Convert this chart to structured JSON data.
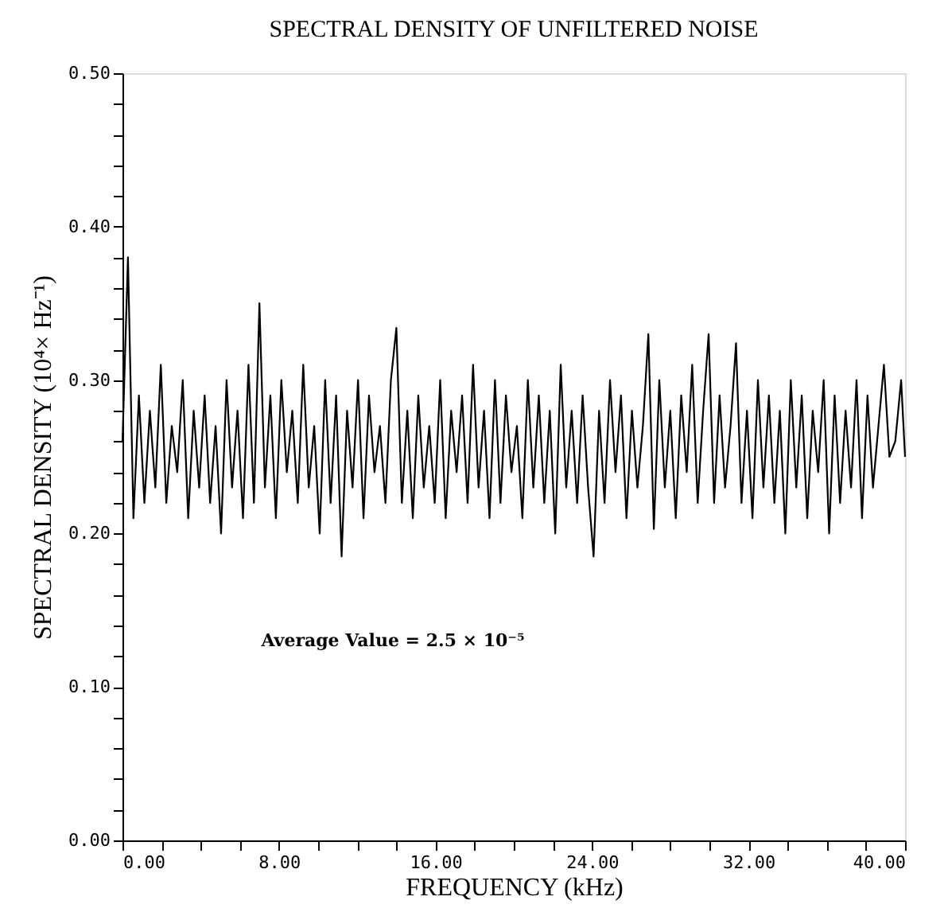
{
  "chart_data": {
    "type": "line",
    "title": "SPECTRAL DENSITY OF UNFILTERED NOISE",
    "xlabel": "FREQUENCY (kHz)",
    "ylabel": "SPECTRAL DENSITY (10⁴× Hz⁻¹)",
    "x": [
      0,
      0.28,
      0.56,
      0.84,
      1.12,
      1.4,
      1.68,
      1.96,
      2.24,
      2.52,
      2.8,
      3.08,
      3.36,
      3.64,
      3.92,
      4.2,
      4.48,
      4.76,
      5.04,
      5.32,
      5.6,
      5.88,
      6.16,
      6.44,
      6.72,
      7,
      7.28,
      7.56,
      7.84,
      8.12,
      8.4,
      8.68,
      8.96,
      9.24,
      9.52,
      9.8,
      10.08,
      10.36,
      10.64,
      10.92,
      11.2,
      11.48,
      11.76,
      12.04,
      12.32,
      12.6,
      12.88,
      13.16,
      13.44,
      13.72,
      14,
      14.28,
      14.56,
      14.84,
      15.12,
      15.4,
      15.68,
      15.96,
      16.24,
      16.52,
      16.8,
      17.08,
      17.36,
      17.64,
      17.92,
      18.2,
      18.48,
      18.76,
      19.04,
      19.32,
      19.6,
      19.88,
      20.16,
      20.44,
      20.72,
      21,
      21.28,
      21.56,
      21.84,
      22.12,
      22.4,
      22.68,
      22.96,
      23.24,
      23.52,
      23.8,
      24.08,
      24.36,
      24.64,
      24.92,
      25.2,
      25.48,
      25.76,
      26.04,
      26.32,
      26.6,
      26.88,
      27.16,
      27.44,
      27.72,
      28,
      28.28,
      28.56,
      28.84,
      29.12,
      29.4,
      29.68,
      29.96,
      30.24,
      30.52,
      30.8,
      31.08,
      31.36,
      31.64,
      31.92,
      32.2,
      32.48,
      32.76,
      33.04,
      33.32,
      33.6,
      33.88,
      34.16,
      34.44,
      34.72,
      35,
      35.28,
      35.56,
      35.84,
      36.12,
      36.4,
      36.68,
      36.96,
      37.24,
      37.52,
      37.8,
      38.08,
      38.36,
      38.64,
      38.92,
      39.2,
      39.5,
      39.8,
      40
    ],
    "series": [
      {
        "color": "#000000",
        "values": [
          0.26,
          0.38,
          0.21,
          0.29,
          0.22,
          0.28,
          0.23,
          0.31,
          0.22,
          0.27,
          0.24,
          0.3,
          0.21,
          0.28,
          0.23,
          0.29,
          0.22,
          0.27,
          0.2,
          0.3,
          0.23,
          0.28,
          0.21,
          0.31,
          0.22,
          0.35,
          0.23,
          0.29,
          0.21,
          0.3,
          0.24,
          0.28,
          0.22,
          0.31,
          0.23,
          0.27,
          0.2,
          0.3,
          0.22,
          0.29,
          0.185,
          0.28,
          0.23,
          0.3,
          0.21,
          0.29,
          0.24,
          0.27,
          0.22,
          0.3,
          0.334,
          0.22,
          0.28,
          0.21,
          0.29,
          0.23,
          0.27,
          0.22,
          0.3,
          0.21,
          0.28,
          0.24,
          0.29,
          0.22,
          0.31,
          0.23,
          0.28,
          0.21,
          0.3,
          0.22,
          0.29,
          0.24,
          0.27,
          0.21,
          0.3,
          0.23,
          0.29,
          0.22,
          0.28,
          0.2,
          0.31,
          0.23,
          0.28,
          0.22,
          0.29,
          0.23,
          0.185,
          0.28,
          0.22,
          0.3,
          0.24,
          0.29,
          0.21,
          0.28,
          0.23,
          0.27,
          0.33,
          0.203,
          0.3,
          0.23,
          0.28,
          0.21,
          0.29,
          0.24,
          0.31,
          0.22,
          0.28,
          0.33,
          0.22,
          0.29,
          0.23,
          0.27,
          0.324,
          0.22,
          0.28,
          0.21,
          0.3,
          0.23,
          0.29,
          0.22,
          0.28,
          0.2,
          0.3,
          0.23,
          0.29,
          0.21,
          0.28,
          0.24,
          0.3,
          0.2,
          0.29,
          0.22,
          0.28,
          0.23,
          0.3,
          0.21,
          0.29,
          0.23,
          0.27,
          0.31,
          0.25,
          0.26,
          0.3,
          0.25
        ]
      }
    ],
    "xlim": [
      0,
      40
    ],
    "ylim": [
      0,
      0.5
    ],
    "xticks": [
      {
        "value": 0,
        "label": "0.00"
      },
      {
        "value": 2,
        "label": null
      },
      {
        "value": 4,
        "label": null
      },
      {
        "value": 6,
        "label": null
      },
      {
        "value": 8,
        "label": "8.00"
      },
      {
        "value": 10,
        "label": null
      },
      {
        "value": 12,
        "label": null
      },
      {
        "value": 14,
        "label": null
      },
      {
        "value": 16,
        "label": "16.00"
      },
      {
        "value": 18,
        "label": null
      },
      {
        "value": 20,
        "label": null
      },
      {
        "value": 22,
        "label": null
      },
      {
        "value": 24,
        "label": "24.00"
      },
      {
        "value": 26,
        "label": null
      },
      {
        "value": 28,
        "label": null
      },
      {
        "value": 30,
        "label": null
      },
      {
        "value": 32,
        "label": "32.00"
      },
      {
        "value": 34,
        "label": null
      },
      {
        "value": 36,
        "label": null
      },
      {
        "value": 38,
        "label": null
      },
      {
        "value": 40,
        "label": "40.00"
      }
    ],
    "yticks": [
      {
        "value": 0,
        "label": "0.00"
      },
      {
        "value": 0.02,
        "label": null
      },
      {
        "value": 0.04,
        "label": null
      },
      {
        "value": 0.06,
        "label": null
      },
      {
        "value": 0.08,
        "label": null
      },
      {
        "value": 0.1,
        "label": "0.10"
      },
      {
        "value": 0.12,
        "label": null
      },
      {
        "value": 0.14,
        "label": null
      },
      {
        "value": 0.16,
        "label": null
      },
      {
        "value": 0.18,
        "label": null
      },
      {
        "value": 0.2,
        "label": "0.20"
      },
      {
        "value": 0.22,
        "label": null
      },
      {
        "value": 0.24,
        "label": null
      },
      {
        "value": 0.26,
        "label": null
      },
      {
        "value": 0.28,
        "label": null
      },
      {
        "value": 0.3,
        "label": "0.30"
      },
      {
        "value": 0.32,
        "label": null
      },
      {
        "value": 0.34,
        "label": null
      },
      {
        "value": 0.36,
        "label": null
      },
      {
        "value": 0.38,
        "label": null
      },
      {
        "value": 0.4,
        "label": "0.40"
      },
      {
        "value": 0.42,
        "label": null
      },
      {
        "value": 0.44,
        "label": null
      },
      {
        "value": 0.46,
        "label": null
      },
      {
        "value": 0.48,
        "label": null
      },
      {
        "value": 0.5,
        "label": "0.50"
      }
    ],
    "annotations": [
      "Average Value = 2.5 × 10⁻⁵"
    ],
    "grid": false,
    "legend": false
  }
}
